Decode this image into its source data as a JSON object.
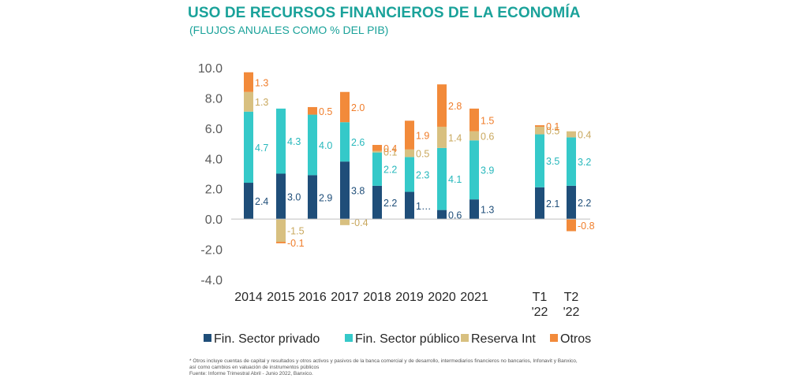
{
  "header": {
    "title": "USO DE RECURSOS FINANCIEROS DE LA ECONOMÍA",
    "subtitle": "(FLUJOS ANUALES COMO % DEL PIB)"
  },
  "chart_data": {
    "type": "bar",
    "stacked": true,
    "title": "USO DE RECURSOS FINANCIEROS DE LA ECONOMÍA",
    "subtitle": "(FLUJOS ANUALES COMO % DEL PIB)",
    "categories": [
      "2014",
      "2015",
      "2016",
      "2017",
      "2018",
      "2019",
      "2020",
      "2021",
      "T1 '22",
      "T2 '22"
    ],
    "category_lines": [
      [
        "2014"
      ],
      [
        "2015"
      ],
      [
        "2016"
      ],
      [
        "2017"
      ],
      [
        "2018"
      ],
      [
        "2019"
      ],
      [
        "2020"
      ],
      [
        "2021"
      ],
      [
        "T1",
        "'22"
      ],
      [
        "T2",
        "'22"
      ]
    ],
    "ylim": [
      -4.0,
      10.0
    ],
    "yticks": [
      "10.0",
      "8.0",
      "6.0",
      "4.0",
      "2.0",
      "0.0",
      "-2.0",
      "-4.0"
    ],
    "grid": false,
    "legend_position": "bottom",
    "series": [
      {
        "name": "Fin. Sector privado",
        "color": "#1f4e79",
        "label_color": "#1f4e79",
        "values": [
          2.4,
          3.0,
          2.9,
          3.8,
          2.2,
          1.8,
          0.6,
          1.3,
          2.1,
          2.2
        ],
        "labels": [
          "2.4",
          "3.0",
          "2.9",
          "3.8",
          "2.2",
          "1…",
          "0.6",
          "1.3",
          "2.1",
          "2.2"
        ]
      },
      {
        "name": "Fin. Sector público",
        "color": "#35c9c9",
        "label_color": "#27b8bc",
        "values": [
          4.7,
          4.3,
          4.0,
          2.6,
          2.2,
          2.3,
          4.1,
          3.9,
          3.5,
          3.2
        ],
        "labels": [
          "4.7",
          "4.3",
          "4.0",
          "2.6",
          "2.2",
          "2.3",
          "4.1",
          "3.9",
          "3.5",
          "3.2"
        ]
      },
      {
        "name": "Reserva Int",
        "color": "#d8c080",
        "label_color": "#c9a85e",
        "values": [
          1.3,
          -1.5,
          0.0,
          -0.4,
          0.1,
          0.5,
          1.4,
          0.6,
          0.5,
          0.4
        ],
        "labels": [
          "1.3",
          "-1.5",
          "",
          "-0.4",
          "0.1",
          "0.5",
          "1.4",
          "0.6",
          "0.5",
          "0.4"
        ]
      },
      {
        "name": "Otros",
        "color": "#f28a3a",
        "label_color": "#f07d2a",
        "values": [
          1.3,
          -0.1,
          0.5,
          2.0,
          0.4,
          1.9,
          2.8,
          1.5,
          0.1,
          -0.8
        ],
        "labels": [
          "1.3",
          "-0.1",
          "0.5",
          "2.0",
          "0.4",
          "1.9",
          "2.8",
          "1.5",
          "0.1",
          "-0.8"
        ]
      }
    ]
  },
  "footnotes": [
    "* Otros incluye cuentas de capital y resultados y otros activos y pasivos de la banca comercial y de desarrollo, intermediarios financieros no bancarios, Infonavit y Banxico,",
    "así como cambios en valuación de instrumentos públicos",
    "Fuente: Informe Trimestral Abril - Junio 2022, Banxico."
  ]
}
